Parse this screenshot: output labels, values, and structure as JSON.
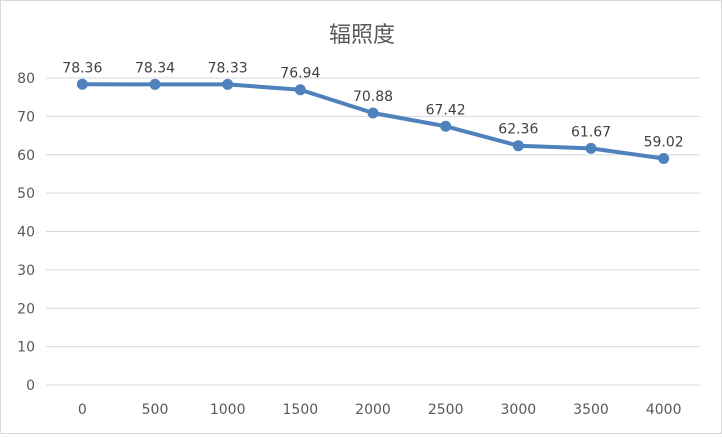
{
  "chart_data": {
    "type": "line",
    "title": "辐照度",
    "xlabel": "",
    "ylabel": "",
    "categories": [
      "0",
      "500",
      "1000",
      "1500",
      "2000",
      "2500",
      "3000",
      "3500",
      "4000"
    ],
    "series": [
      {
        "values": [
          78.36,
          78.34,
          78.33,
          76.94,
          70.88,
          67.42,
          62.36,
          61.67,
          59.02
        ],
        "labels": [
          "78.36",
          "78.34",
          "78.33",
          "76.94",
          "70.88",
          "67.42",
          "62.36",
          "61.67",
          "59.02"
        ]
      }
    ],
    "ylim": [
      0,
      80
    ],
    "yticks": [
      "0",
      "10",
      "20",
      "30",
      "40",
      "50",
      "60",
      "70",
      "80"
    ],
    "grid": true,
    "legend": "none",
    "colors": {
      "line": "#4f81bd",
      "grid": "#d9d9d9",
      "text": "#595959"
    }
  }
}
